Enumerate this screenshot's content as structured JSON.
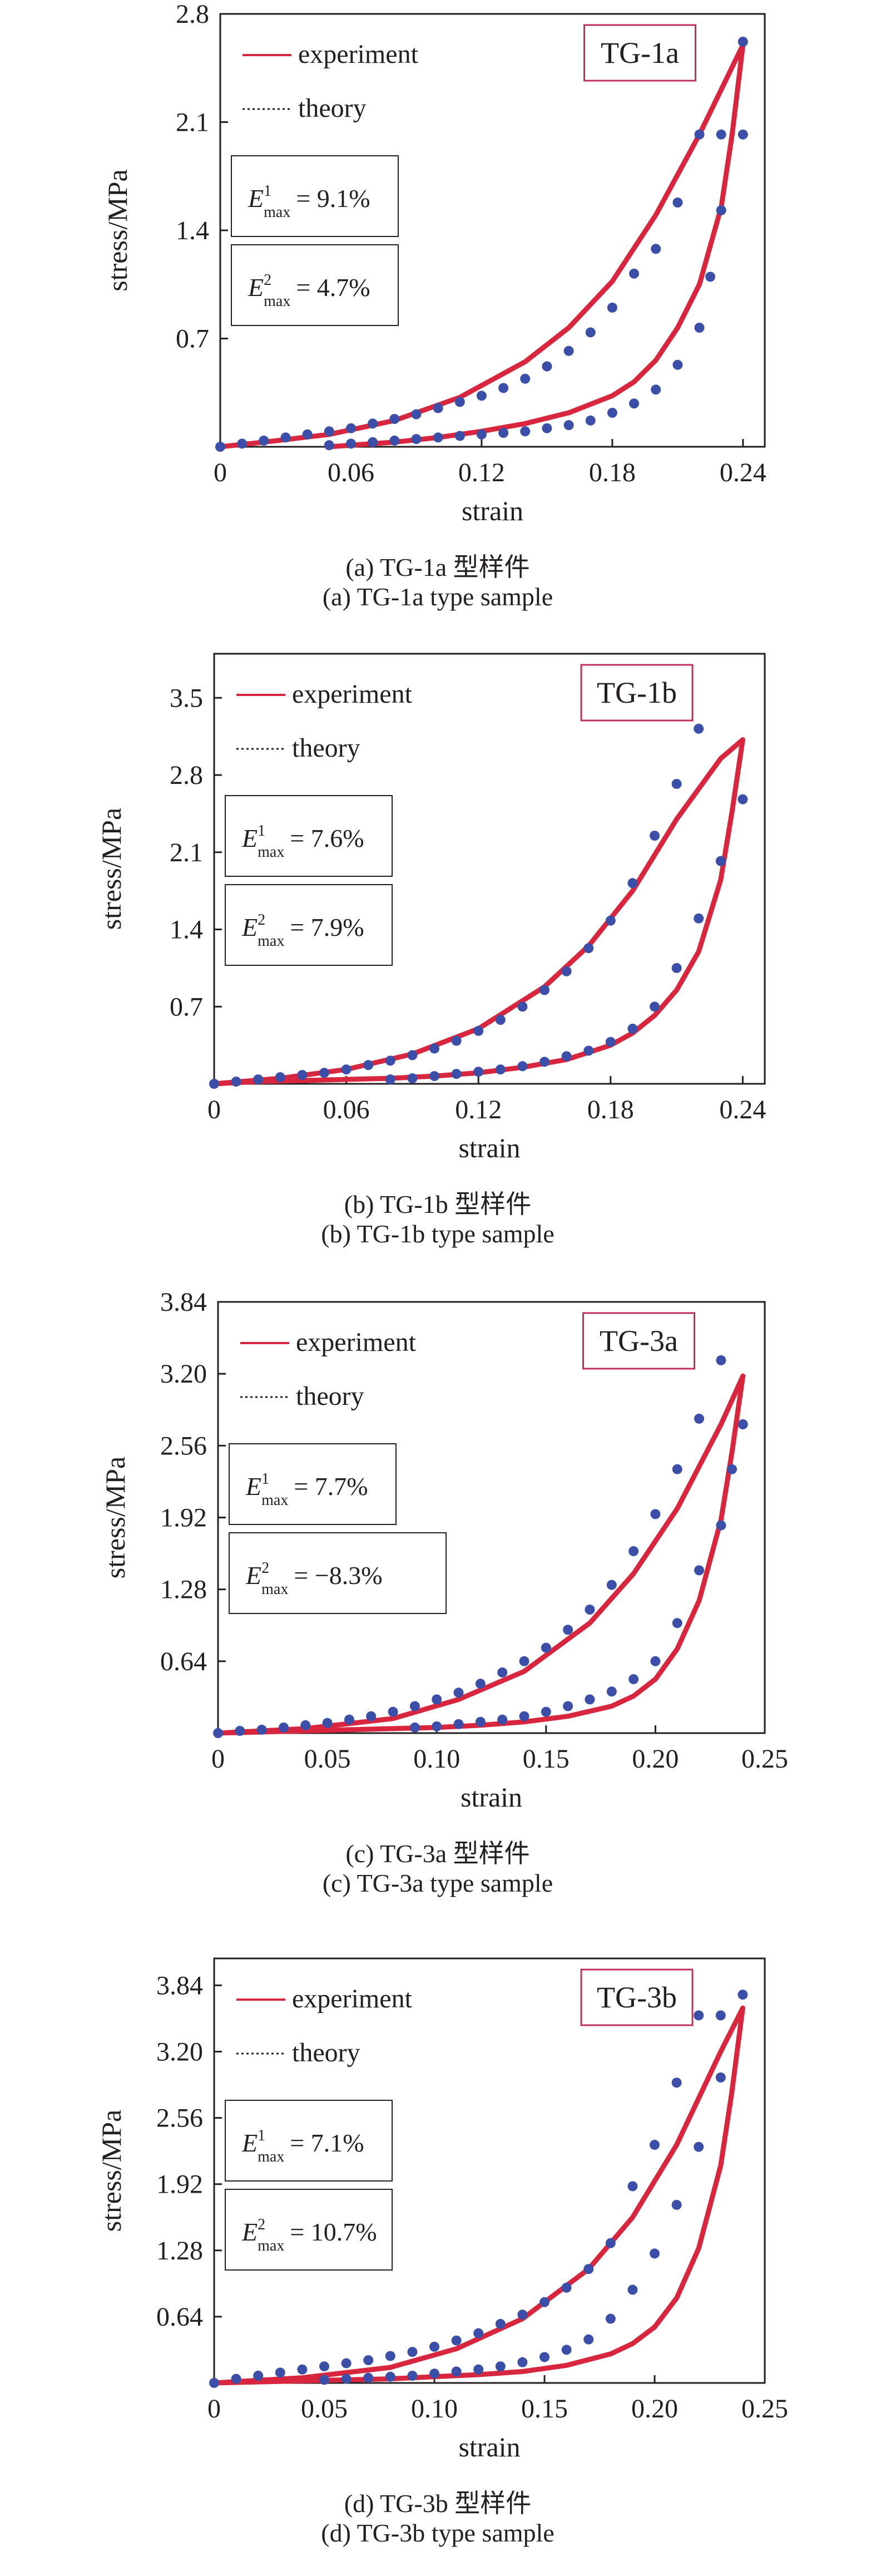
{
  "colors": {
    "experiment": "#d7263d",
    "theory": "#3b4fa8",
    "axis": "#231f20",
    "tag_border": "#c1305a"
  },
  "chart_data": [
    {
      "type": "line",
      "tag": "TG-1a",
      "caption_cn": "(a) TG-1a 型样件",
      "caption_en": "(a) TG-1a type sample",
      "xlabel": "strain",
      "ylabel": "stress/MPa",
      "xlim": [
        0,
        0.25
      ],
      "ylim": [
        0,
        2.8
      ],
      "xticks": [
        0,
        0.06,
        0.12,
        0.18,
        0.24
      ],
      "xtick_labels": [
        "0",
        "0.06",
        "0.12",
        "0.18",
        "0.24"
      ],
      "yticks": [
        0.7,
        1.4,
        2.1,
        2.8
      ],
      "ytick_labels": [
        "0.7",
        "1.4",
        "2.1",
        "2.8"
      ],
      "legend": {
        "experiment": "experiment",
        "theory": "theory"
      },
      "err1": {
        "label": "E",
        "sup": "1",
        "sub": "max",
        "value": "= 9.1%"
      },
      "err2": {
        "label": "E",
        "sup": "2",
        "sub": "max",
        "value": "= 4.7%"
      },
      "series": [
        {
          "name": "experiment",
          "style": "line",
          "loading": {
            "x": [
              0,
              0.02,
              0.05,
              0.08,
              0.11,
              0.14,
              0.16,
              0.18,
              0.2,
              0.22,
              0.24
            ],
            "y": [
              0,
              0.03,
              0.08,
              0.17,
              0.32,
              0.55,
              0.77,
              1.07,
              1.5,
              2.02,
              2.6
            ]
          },
          "unloading": {
            "x": [
              0.24,
              0.235,
              0.23,
              0.22,
              0.21,
              0.2,
              0.19,
              0.18,
              0.16,
              0.14,
              0.12,
              0.1,
              0.08,
              0.065,
              0.05
            ],
            "y": [
              2.6,
              2.02,
              1.55,
              1.05,
              0.77,
              0.56,
              0.42,
              0.33,
              0.22,
              0.15,
              0.1,
              0.06,
              0.03,
              0.015,
              0
            ]
          }
        },
        {
          "name": "theory",
          "style": "dots",
          "loading": {
            "x": [
              0,
              0.01,
              0.02,
              0.03,
              0.04,
              0.05,
              0.06,
              0.07,
              0.08,
              0.09,
              0.1,
              0.11,
              0.12,
              0.13,
              0.14,
              0.15,
              0.16,
              0.17,
              0.18,
              0.19,
              0.2,
              0.21,
              0.22,
              0.23,
              0.24
            ],
            "y": [
              0,
              0.02,
              0.04,
              0.06,
              0.08,
              0.1,
              0.12,
              0.15,
              0.18,
              0.21,
              0.25,
              0.29,
              0.33,
              0.38,
              0.44,
              0.52,
              0.62,
              0.74,
              0.9,
              1.12,
              1.28,
              1.58,
              2.02,
              2.02,
              2.62
            ]
          },
          "unloading": {
            "x": [
              0.24,
              0.23,
              0.225,
              0.22,
              0.21,
              0.2,
              0.19,
              0.18,
              0.17,
              0.16,
              0.15,
              0.14,
              0.13,
              0.12,
              0.11,
              0.1,
              0.09,
              0.08,
              0.07,
              0.06,
              0.05
            ],
            "y": [
              2.02,
              1.53,
              1.1,
              0.77,
              0.53,
              0.37,
              0.28,
              0.22,
              0.17,
              0.14,
              0.12,
              0.1,
              0.09,
              0.08,
              0.07,
              0.06,
              0.05,
              0.04,
              0.03,
              0.02,
              0.01
            ]
          }
        }
      ]
    },
    {
      "type": "line",
      "tag": "TG-1b",
      "caption_cn": "(b) TG-1b 型样件",
      "caption_en": "(b) TG-1b type sample",
      "xlabel": "strain",
      "ylabel": "stress/MPa",
      "xlim": [
        0,
        0.25
      ],
      "ylim": [
        0,
        3.9
      ],
      "xticks": [
        0,
        0.06,
        0.12,
        0.18,
        0.24
      ],
      "xtick_labels": [
        "0",
        "0.06",
        "0.12",
        "0.18",
        "0.24"
      ],
      "yticks": [
        0.7,
        1.4,
        2.1,
        2.8,
        3.5
      ],
      "ytick_labels": [
        "0.7",
        "1.4",
        "2.1",
        "2.8",
        "3.5"
      ],
      "legend": {
        "experiment": "experiment",
        "theory": "theory"
      },
      "err1": {
        "label": "E",
        "sup": "1",
        "sub": "max",
        "value": "= 7.6%"
      },
      "err2": {
        "label": "E",
        "sup": "2",
        "sub": "max",
        "value": "= 7.9%"
      },
      "series": [
        {
          "name": "experiment",
          "style": "line",
          "loading": {
            "x": [
              0,
              0.03,
              0.06,
              0.09,
              0.12,
              0.15,
              0.17,
              0.19,
              0.21,
              0.23,
              0.24
            ],
            "y": [
              0,
              0.05,
              0.13,
              0.27,
              0.5,
              0.88,
              1.25,
              1.75,
              2.4,
              2.95,
              3.12
            ]
          },
          "unloading": {
            "x": [
              0.24,
              0.235,
              0.23,
              0.22,
              0.21,
              0.2,
              0.19,
              0.18,
              0.16,
              0.14,
              0.12,
              0.1,
              0.08,
              0.06,
              0.04,
              0.02,
              0
            ],
            "y": [
              3.12,
              2.45,
              1.85,
              1.2,
              0.85,
              0.62,
              0.46,
              0.35,
              0.22,
              0.15,
              0.1,
              0.07,
              0.05,
              0.04,
              0.03,
              0.02,
              0
            ]
          }
        },
        {
          "name": "theory",
          "style": "dots",
          "loading": {
            "x": [
              0,
              0.01,
              0.02,
              0.03,
              0.04,
              0.05,
              0.06,
              0.07,
              0.08,
              0.09,
              0.1,
              0.11,
              0.12,
              0.13,
              0.14,
              0.15,
              0.16,
              0.17,
              0.18,
              0.19,
              0.2,
              0.21,
              0.22
            ],
            "y": [
              0,
              0.02,
              0.04,
              0.06,
              0.08,
              0.1,
              0.13,
              0.17,
              0.21,
              0.26,
              0.32,
              0.39,
              0.48,
              0.58,
              0.7,
              0.85,
              1.02,
              1.23,
              1.48,
              1.82,
              2.25,
              2.72,
              3.22
            ]
          },
          "unloading": {
            "x": [
              0.24,
              0.23,
              0.22,
              0.21,
              0.2,
              0.19,
              0.18,
              0.17,
              0.16,
              0.15,
              0.14,
              0.13,
              0.12,
              0.11,
              0.1,
              0.09,
              0.08
            ],
            "y": [
              2.58,
              2.02,
              1.5,
              1.05,
              0.7,
              0.5,
              0.38,
              0.3,
              0.25,
              0.2,
              0.16,
              0.13,
              0.11,
              0.09,
              0.07,
              0.05,
              0.04
            ]
          }
        }
      ]
    },
    {
      "type": "line",
      "tag": "TG-3a",
      "caption_cn": "(c) TG-3a 型样件",
      "caption_en": "(c) TG-3a type sample",
      "xlabel": "strain",
      "ylabel": "stress/MPa",
      "xlim": [
        0,
        0.25
      ],
      "ylim": [
        0,
        3.84
      ],
      "xticks": [
        0,
        0.05,
        0.1,
        0.15,
        0.2,
        0.25
      ],
      "xtick_labels": [
        "0",
        "0.05",
        "0.10",
        "0.15",
        "0.20",
        "0.25"
      ],
      "yticks": [
        0.64,
        1.28,
        1.92,
        2.56,
        3.2,
        3.84
      ],
      "ytick_labels": [
        "0.64",
        "1.28",
        "1.92",
        "2.56",
        "3.20",
        "3.84"
      ],
      "legend": {
        "experiment": "experiment",
        "theory": "theory"
      },
      "err1": {
        "label": "E",
        "sup": "1",
        "sub": "max",
        "value": "= 7.7%"
      },
      "err2": {
        "label": "E",
        "sup": "2",
        "sub": "max",
        "value": "= −8.3%"
      },
      "series": [
        {
          "name": "experiment",
          "style": "line",
          "loading": {
            "x": [
              0,
              0.04,
              0.08,
              0.11,
              0.14,
              0.17,
              0.19,
              0.21,
              0.23,
              0.24
            ],
            "y": [
              0,
              0.04,
              0.13,
              0.3,
              0.55,
              0.98,
              1.42,
              2.0,
              2.75,
              3.18
            ]
          },
          "unloading": {
            "x": [
              0.24,
              0.235,
              0.23,
              0.22,
              0.21,
              0.2,
              0.19,
              0.18,
              0.16,
              0.14,
              0.12,
              0.1,
              0.08,
              0.06,
              0.04,
              0.02,
              0
            ],
            "y": [
              3.18,
              2.5,
              1.9,
              1.18,
              0.75,
              0.48,
              0.33,
              0.24,
              0.15,
              0.1,
              0.07,
              0.05,
              0.04,
              0.03,
              0.02,
              0.01,
              0
            ]
          }
        },
        {
          "name": "theory",
          "style": "dots",
          "loading": {
            "x": [
              0,
              0.01,
              0.02,
              0.03,
              0.04,
              0.05,
              0.06,
              0.07,
              0.08,
              0.09,
              0.1,
              0.11,
              0.12,
              0.13,
              0.14,
              0.15,
              0.16,
              0.17,
              0.18,
              0.19,
              0.2,
              0.21,
              0.22,
              0.23
            ],
            "y": [
              0,
              0.02,
              0.03,
              0.05,
              0.07,
              0.09,
              0.12,
              0.15,
              0.19,
              0.24,
              0.3,
              0.36,
              0.44,
              0.54,
              0.64,
              0.76,
              0.92,
              1.1,
              1.32,
              1.62,
              1.95,
              2.35,
              2.8,
              3.32
            ]
          },
          "unloading": {
            "x": [
              0.24,
              0.235,
              0.23,
              0.22,
              0.21,
              0.2,
              0.19,
              0.18,
              0.17,
              0.16,
              0.15,
              0.14,
              0.13,
              0.12,
              0.11,
              0.1,
              0.09
            ],
            "y": [
              2.75,
              2.35,
              1.85,
              1.45,
              0.98,
              0.64,
              0.48,
              0.37,
              0.3,
              0.24,
              0.19,
              0.15,
              0.12,
              0.1,
              0.08,
              0.06,
              0.05
            ]
          }
        }
      ]
    },
    {
      "type": "line",
      "tag": "TG-3b",
      "caption_cn": "(d) TG-3b 型样件",
      "caption_en": "(d) TG-3b type sample",
      "xlabel": "strain",
      "ylabel": "stress/MPa",
      "xlim": [
        0,
        0.25
      ],
      "ylim": [
        0,
        4.1
      ],
      "xticks": [
        0,
        0.05,
        0.1,
        0.15,
        0.2,
        0.25
      ],
      "xtick_labels": [
        "0",
        "0.05",
        "0.10",
        "0.15",
        "0.20",
        "0.25"
      ],
      "yticks": [
        0.64,
        1.28,
        1.92,
        2.56,
        3.2,
        3.84
      ],
      "ytick_labels": [
        "0.64",
        "1.28",
        "1.92",
        "2.56",
        "3.20",
        "3.84"
      ],
      "legend": {
        "experiment": "experiment",
        "theory": "theory"
      },
      "err1": {
        "label": "E",
        "sup": "1",
        "sub": "max",
        "value": "= 7.1%"
      },
      "err2": {
        "label": "E",
        "sup": "2",
        "sub": "max",
        "value": "= 10.7%"
      },
      "series": [
        {
          "name": "experiment",
          "style": "line",
          "loading": {
            "x": [
              0,
              0.04,
              0.08,
              0.11,
              0.14,
              0.17,
              0.19,
              0.21,
              0.23,
              0.24
            ],
            "y": [
              0,
              0.05,
              0.15,
              0.33,
              0.62,
              1.1,
              1.6,
              2.3,
              3.2,
              3.62
            ]
          },
          "unloading": {
            "x": [
              0.24,
              0.235,
              0.23,
              0.22,
              0.21,
              0.2,
              0.19,
              0.18,
              0.16,
              0.14,
              0.12,
              0.1,
              0.08,
              0.06,
              0.04,
              0.02,
              0
            ],
            "y": [
              3.62,
              2.8,
              2.1,
              1.3,
              0.82,
              0.54,
              0.38,
              0.28,
              0.17,
              0.11,
              0.08,
              0.06,
              0.04,
              0.03,
              0.02,
              0.01,
              0
            ]
          }
        },
        {
          "name": "theory",
          "style": "dots",
          "loading": {
            "x": [
              0,
              0.01,
              0.02,
              0.03,
              0.04,
              0.05,
              0.06,
              0.07,
              0.08,
              0.09,
              0.1,
              0.11,
              0.12,
              0.13,
              0.14,
              0.15,
              0.16,
              0.17,
              0.18,
              0.19,
              0.2,
              0.21,
              0.22,
              0.23,
              0.24
            ],
            "y": [
              0,
              0.04,
              0.07,
              0.1,
              0.13,
              0.16,
              0.19,
              0.22,
              0.26,
              0.3,
              0.35,
              0.41,
              0.48,
              0.57,
              0.66,
              0.78,
              0.92,
              1.1,
              1.35,
              1.9,
              2.3,
              2.9,
              3.55,
              3.55,
              3.75
            ]
          },
          "unloading": {
            "x": [
              0.23,
              0.22,
              0.21,
              0.2,
              0.19,
              0.18,
              0.17,
              0.16,
              0.15,
              0.14,
              0.13,
              0.12,
              0.11,
              0.1,
              0.09,
              0.08,
              0.07,
              0.06,
              0.05
            ],
            "y": [
              2.95,
              2.28,
              1.72,
              1.25,
              0.9,
              0.62,
              0.42,
              0.32,
              0.25,
              0.2,
              0.16,
              0.13,
              0.11,
              0.09,
              0.07,
              0.06,
              0.05,
              0.04,
              0.03
            ]
          }
        }
      ]
    }
  ]
}
